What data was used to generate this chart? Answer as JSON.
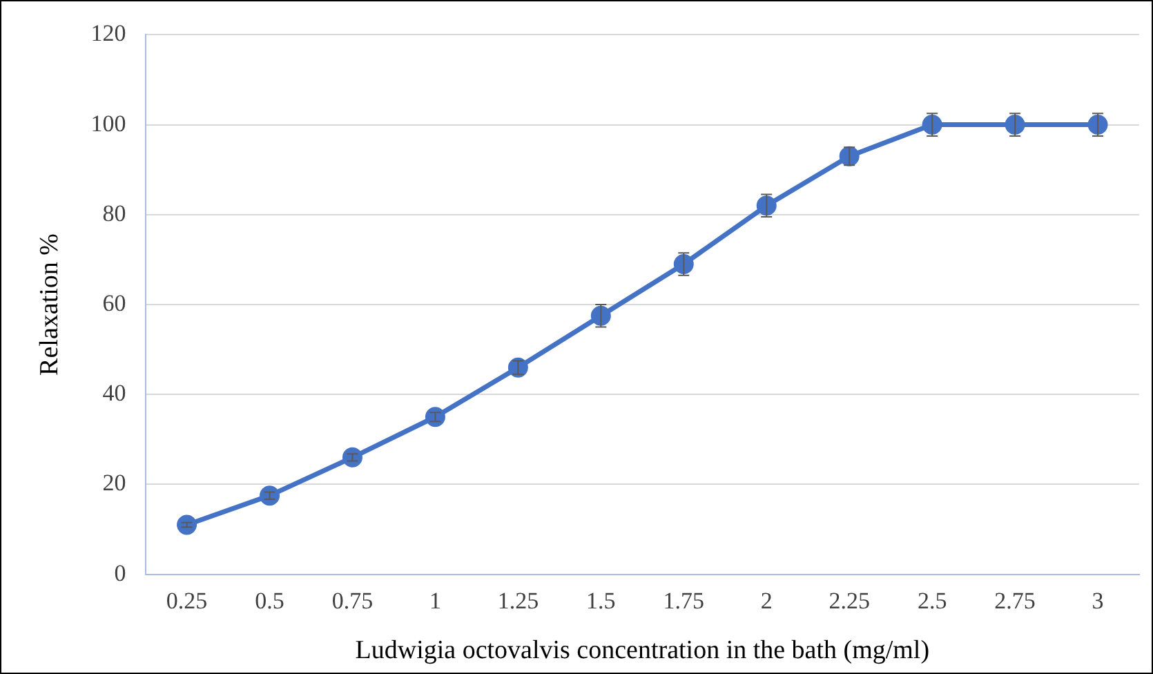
{
  "chart_data": {
    "type": "line",
    "xlabel": "Ludwigia octovalvis concentration in the bath (mg/ml)",
    "ylabel": "Relaxation %",
    "categories": [
      "0.25",
      "0.5",
      "0.75",
      "1",
      "1.25",
      "1.5",
      "1.75",
      "2",
      "2.25",
      "2.5",
      "2.75",
      "3"
    ],
    "series": [
      {
        "color": "#4472c4",
        "values": [
          11,
          17.5,
          26,
          35,
          46,
          57.5,
          69,
          82,
          93,
          100,
          100,
          100
        ],
        "errors": [
          0.5,
          0.8,
          0.8,
          1,
          1.5,
          2.5,
          2.5,
          2.5,
          2,
          2.5,
          2.5,
          2.5
        ]
      }
    ],
    "ylim": [
      0,
      120
    ],
    "yticks": [
      0,
      20,
      40,
      60,
      80,
      100,
      120
    ],
    "grid": "y",
    "marker": "circle",
    "line_style": "solid",
    "legend": false
  }
}
